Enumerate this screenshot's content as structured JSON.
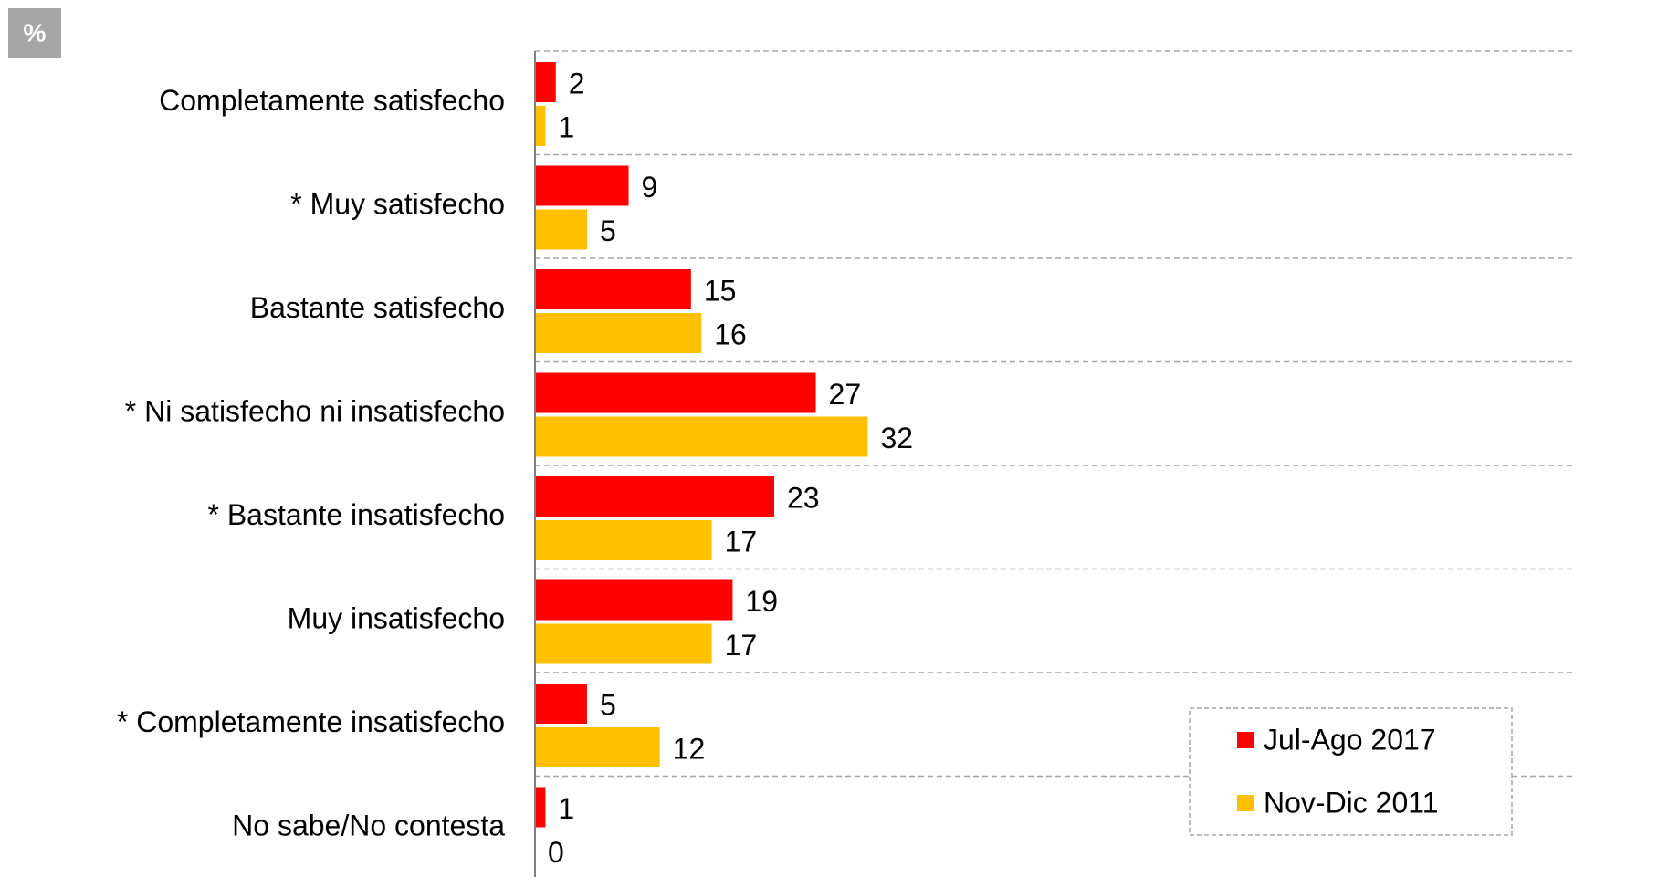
{
  "chart_data": {
    "type": "hbar",
    "unit_label": "%",
    "categories": [
      "Completamente satisfecho",
      "* Muy satisfecho",
      "Bastante satisfecho",
      "* Ni satisfecho ni insatisfecho",
      "* Bastante insatisfecho",
      "Muy insatisfecho",
      "* Completamente insatisfecho",
      "No sabe/No contesta"
    ],
    "series": [
      {
        "name": "Jul-Ago 2017",
        "color": "#ff0000",
        "values": [
          2,
          9,
          15,
          27,
          23,
          19,
          5,
          1
        ]
      },
      {
        "name": "Nov-Dic 2011",
        "color": "#ffc000",
        "values": [
          1,
          5,
          16,
          32,
          17,
          17,
          12,
          0
        ]
      }
    ],
    "xlim": [
      0,
      100
    ],
    "legend": "lower right"
  }
}
